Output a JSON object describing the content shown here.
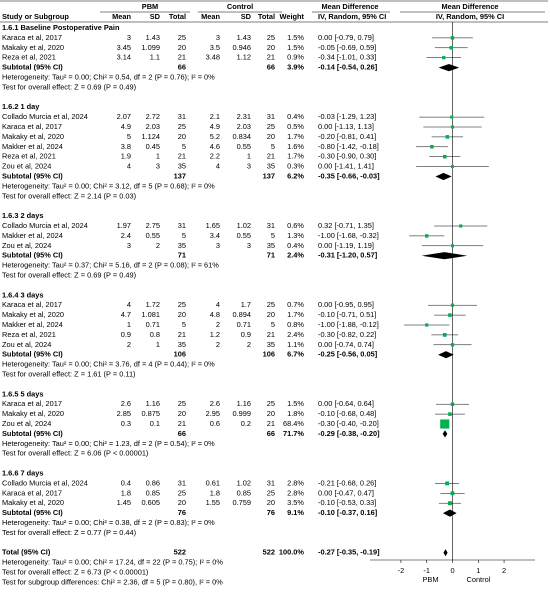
{
  "header": {
    "group_pbm": "PBM",
    "group_control": "Control",
    "group_md_text": "Mean Difference",
    "group_md_plot": "Mean Difference",
    "columns": [
      "Study or Subgroup",
      "Mean",
      "SD",
      "Total",
      "Mean",
      "SD",
      "Total",
      "Weight",
      "IV, Random, 95% CI",
      "IV, Random, 95% CI"
    ]
  },
  "chart_data": {
    "type": "forest",
    "xlim": [
      -3.2,
      3.2
    ],
    "xticks": [
      -2,
      -1,
      0,
      1,
      2
    ],
    "x_label_left": "PBM",
    "x_label_right": "Control",
    "square_color": "#00b050",
    "diamond_color": "#000000",
    "subgroups": [
      {
        "title": "1.6.1 Baseline Postoperative Pain",
        "studies": [
          {
            "study": "Karaca et al, 2017",
            "pbm": [
              "3",
              "1.43",
              "25"
            ],
            "control": [
              "3",
              "1.43",
              "25"
            ],
            "weight": 1.5,
            "weight_label": "1.5%",
            "md": 0.0,
            "lo": -0.79,
            "hi": 0.79,
            "md_label": "0.00 [-0.79, 0.79]"
          },
          {
            "study": "Makaky et al, 2020",
            "pbm": [
              "3.45",
              "1.099",
              "20"
            ],
            "control": [
              "3.5",
              "0.946",
              "20"
            ],
            "weight": 1.5,
            "weight_label": "1.5%",
            "md": -0.05,
            "lo": -0.69,
            "hi": 0.59,
            "md_label": "-0.05 [-0.69, 0.59]"
          },
          {
            "study": "Reza et al, 2021",
            "pbm": [
              "3.14",
              "1.1",
              "21"
            ],
            "control": [
              "3.48",
              "1.12",
              "21"
            ],
            "weight": 0.9,
            "weight_label": "0.9%",
            "md": -0.34,
            "lo": -1.01,
            "hi": 0.33,
            "md_label": "-0.34 [-1.01, 0.33]"
          }
        ],
        "subtotal": {
          "label": "Subtotal (95% CI)",
          "pbm_total": "66",
          "control_total": "66",
          "weight_label": "3.9%",
          "md": -0.14,
          "lo": -0.54,
          "hi": 0.26,
          "md_label": "-0.14 [-0.54, 0.26]"
        },
        "heterogeneity": "Heterogeneity: Tau² = 0.00; Chi² = 0.54, df = 2 (P = 0.76); I² = 0%",
        "overall": "Test for overall effect: Z = 0.69 (P = 0.49)"
      },
      {
        "title": "1.6.2 1 day",
        "studies": [
          {
            "study": "Collado Murcia et al, 2024",
            "pbm": [
              "2.07",
              "2.72",
              "31"
            ],
            "control": [
              "2.1",
              "2.31",
              "31"
            ],
            "weight": 0.4,
            "weight_label": "0.4%",
            "md": -0.03,
            "lo": -1.29,
            "hi": 1.23,
            "md_label": "-0.03 [-1.29, 1.23]"
          },
          {
            "study": "Karaca et al, 2017",
            "pbm": [
              "4.9",
              "2.03",
              "25"
            ],
            "control": [
              "4.9",
              "2.03",
              "25"
            ],
            "weight": 0.5,
            "weight_label": "0.5%",
            "md": 0.0,
            "lo": -1.13,
            "hi": 1.13,
            "md_label": "0.00 [-1.13, 1.13]"
          },
          {
            "study": "Makaky et al, 2020",
            "pbm": [
              "5",
              "1.124",
              "20"
            ],
            "control": [
              "5.2",
              "0.834",
              "20"
            ],
            "weight": 1.7,
            "weight_label": "1.7%",
            "md": -0.2,
            "lo": -0.81,
            "hi": 0.41,
            "md_label": "-0.20 [-0.81, 0.41]"
          },
          {
            "study": "Makker et al, 2024",
            "pbm": [
              "3.8",
              "0.45",
              "5"
            ],
            "control": [
              "4.6",
              "0.55",
              "5"
            ],
            "weight": 1.6,
            "weight_label": "1.6%",
            "md": -0.8,
            "lo": -1.42,
            "hi": -0.18,
            "md_label": "-0.80 [-1.42, -0.18]"
          },
          {
            "study": "Reza et al, 2021",
            "pbm": [
              "1.9",
              "1",
              "21"
            ],
            "control": [
              "2.2",
              "1",
              "21"
            ],
            "weight": 1.7,
            "weight_label": "1.7%",
            "md": -0.3,
            "lo": -0.9,
            "hi": 0.3,
            "md_label": "-0.30 [-0.90, 0.30]"
          },
          {
            "study": "Zou et al, 2024",
            "pbm": [
              "4",
              "3",
              "35"
            ],
            "control": [
              "4",
              "3",
              "35"
            ],
            "weight": 0.3,
            "weight_label": "0.3%",
            "md": 0.0,
            "lo": -1.41,
            "hi": 1.41,
            "md_label": "0.00 [-1.41, 1.41]"
          }
        ],
        "subtotal": {
          "label": "Subtotal (95% CI)",
          "pbm_total": "137",
          "control_total": "137",
          "weight_label": "6.2%",
          "md": -0.35,
          "lo": -0.66,
          "hi": -0.03,
          "md_label": "-0.35 [-0.66, -0.03]"
        },
        "heterogeneity": "Heterogeneity: Tau² = 0.00; Chi² = 3.12, df = 5 (P = 0.68); I² = 0%",
        "overall": "Test for overall effect: Z = 2.14 (P = 0.03)"
      },
      {
        "title": "1.6.3 2 days",
        "studies": [
          {
            "study": "Collado Murcia et al, 2024",
            "pbm": [
              "1.97",
              "2.75",
              "31"
            ],
            "control": [
              "1.65",
              "1.02",
              "31"
            ],
            "weight": 0.6,
            "weight_label": "0.6%",
            "md": 0.32,
            "lo": -0.71,
            "hi": 1.35,
            "md_label": "0.32 [-0.71, 1.35]"
          },
          {
            "study": "Makker et al, 2024",
            "pbm": [
              "2.4",
              "0.55",
              "5"
            ],
            "control": [
              "3.4",
              "0.55",
              "5"
            ],
            "weight": 1.3,
            "weight_label": "1.3%",
            "md": -1.0,
            "lo": -1.68,
            "hi": -0.32,
            "md_label": "-1.00 [-1.68, -0.32]"
          },
          {
            "study": "Zou et al, 2024",
            "pbm": [
              "3",
              "2",
              "35"
            ],
            "control": [
              "3",
              "3",
              "35"
            ],
            "weight": 0.4,
            "weight_label": "0.4%",
            "md": 0.0,
            "lo": -1.19,
            "hi": 1.19,
            "md_label": "0.00 [-1.19, 1.19]"
          }
        ],
        "subtotal": {
          "label": "Subtotal (95% CI)",
          "pbm_total": "71",
          "control_total": "71",
          "weight_label": "2.4%",
          "md": -0.31,
          "lo": -1.2,
          "hi": 0.57,
          "md_label": "-0.31 [-1.20, 0.57]"
        },
        "heterogeneity": "Heterogeneity: Tau² = 0.37; Chi² = 5.16, df = 2 (P = 0.08); I² = 61%",
        "overall": "Test for overall effect: Z = 0.69 (P = 0.49)"
      },
      {
        "title": "1.6.4 3 days",
        "studies": [
          {
            "study": "Karaca et al, 2017",
            "pbm": [
              "4",
              "1.72",
              "25"
            ],
            "control": [
              "4",
              "1.7",
              "25"
            ],
            "weight": 0.7,
            "weight_label": "0.7%",
            "md": 0.0,
            "lo": -0.95,
            "hi": 0.95,
            "md_label": "0.00 [-0.95, 0.95]"
          },
          {
            "study": "Makaky et al, 2020",
            "pbm": [
              "4.7",
              "1.081",
              "20"
            ],
            "control": [
              "4.8",
              "0.894",
              "20"
            ],
            "weight": 1.7,
            "weight_label": "1.7%",
            "md": -0.1,
            "lo": -0.71,
            "hi": 0.51,
            "md_label": "-0.10 [-0.71, 0.51]"
          },
          {
            "study": "Makker et al, 2024",
            "pbm": [
              "1",
              "0.71",
              "5"
            ],
            "control": [
              "2",
              "0.71",
              "5"
            ],
            "weight": 0.8,
            "weight_label": "0.8%",
            "md": -1.0,
            "lo": -1.88,
            "hi": -0.12,
            "md_label": "-1.00 [-1.88, -0.12]"
          },
          {
            "study": "Reza et al, 2021",
            "pbm": [
              "0.9",
              "0.8",
              "21"
            ],
            "control": [
              "1.2",
              "0.9",
              "21"
            ],
            "weight": 2.4,
            "weight_label": "2.4%",
            "md": -0.3,
            "lo": -0.82,
            "hi": 0.22,
            "md_label": "-0.30 [-0.82, 0.22]"
          },
          {
            "study": "Zou et al, 2024",
            "pbm": [
              "2",
              "1",
              "35"
            ],
            "control": [
              "2",
              "2",
              "35"
            ],
            "weight": 1.1,
            "weight_label": "1.1%",
            "md": 0.0,
            "lo": -0.74,
            "hi": 0.74,
            "md_label": "0.00 [-0.74, 0.74]"
          }
        ],
        "subtotal": {
          "label": "Subtotal (95% CI)",
          "pbm_total": "106",
          "control_total": "106",
          "weight_label": "6.7%",
          "md": -0.25,
          "lo": -0.56,
          "hi": 0.05,
          "md_label": "-0.25 [-0.56, 0.05]"
        },
        "heterogeneity": "Heterogeneity: Tau² = 0.00; Chi² = 3.76, df = 4 (P = 0.44); I² = 0%",
        "overall": "Test for overall effect: Z = 1.61 (P = 0.11)"
      },
      {
        "title": "1.6.5 5 days",
        "studies": [
          {
            "study": "Karaca et al, 2017",
            "pbm": [
              "2.6",
              "1.16",
              "25"
            ],
            "control": [
              "2.6",
              "1.16",
              "25"
            ],
            "weight": 1.5,
            "weight_label": "1.5%",
            "md": 0.0,
            "lo": -0.64,
            "hi": 0.64,
            "md_label": "0.00 [-0.64, 0.64]"
          },
          {
            "study": "Makaky et al, 2020",
            "pbm": [
              "2.85",
              "0.875",
              "20"
            ],
            "control": [
              "2.95",
              "0.999",
              "20"
            ],
            "weight": 1.8,
            "weight_label": "1.8%",
            "md": -0.1,
            "lo": -0.68,
            "hi": 0.48,
            "md_label": "-0.10 [-0.68, 0.48]"
          },
          {
            "study": "Zou et al, 2024",
            "pbm": [
              "0.3",
              "0.1",
              "21"
            ],
            "control": [
              "0.6",
              "0.2",
              "21"
            ],
            "weight": 68.4,
            "weight_label": "68.4%",
            "md": -0.3,
            "lo": -0.4,
            "hi": -0.2,
            "md_label": "-0.30 [-0.40, -0.20]"
          }
        ],
        "subtotal": {
          "label": "Subtotal (95% CI)",
          "pbm_total": "66",
          "control_total": "66",
          "weight_label": "71.7%",
          "md": -0.29,
          "lo": -0.38,
          "hi": -0.2,
          "md_label": "-0.29 [-0.38, -0.20]"
        },
        "heterogeneity": "Heterogeneity: Tau² = 0.00; Chi² = 1.23, df = 2 (P = 0.54); I² = 0%",
        "overall": "Test for overall effect: Z = 6.06 (P < 0.00001)"
      },
      {
        "title": "1.6.6 7 days",
        "studies": [
          {
            "study": "Collado Murcia et al, 2024",
            "pbm": [
              "0.4",
              "0.86",
              "31"
            ],
            "control": [
              "0.61",
              "1.02",
              "31"
            ],
            "weight": 2.8,
            "weight_label": "2.8%",
            "md": -0.21,
            "lo": -0.68,
            "hi": 0.26,
            "md_label": "-0.21 [-0.68, 0.26]"
          },
          {
            "study": "Karaca et al, 2017",
            "pbm": [
              "1.8",
              "0.85",
              "25"
            ],
            "control": [
              "1.8",
              "0.85",
              "25"
            ],
            "weight": 2.8,
            "weight_label": "2.8%",
            "md": 0.0,
            "lo": -0.47,
            "hi": 0.47,
            "md_label": "0.00 [-0.47, 0.47]"
          },
          {
            "study": "Makaky et al, 2020",
            "pbm": [
              "1.45",
              "0.605",
              "20"
            ],
            "control": [
              "1.55",
              "0.759",
              "20"
            ],
            "weight": 3.5,
            "weight_label": "3.5%",
            "md": -0.1,
            "lo": -0.53,
            "hi": 0.33,
            "md_label": "-0.10 [-0.53, 0.33]"
          }
        ],
        "subtotal": {
          "label": "Subtotal (95% CI)",
          "pbm_total": "76",
          "control_total": "76",
          "weight_label": "9.1%",
          "md": -0.1,
          "lo": -0.37,
          "hi": 0.16,
          "md_label": "-0.10 [-0.37, 0.16]"
        },
        "heterogeneity": "Heterogeneity: Tau² = 0.00; Chi² = 0.38, df = 2 (P = 0.83); I² = 0%",
        "overall": "Test for overall effect: Z = 0.77 (P = 0.44)"
      }
    ],
    "total": {
      "label": "Total (95% CI)",
      "pbm_total": "522",
      "control_total": "522",
      "weight_label": "100.0%",
      "md": -0.27,
      "lo": -0.35,
      "hi": -0.19,
      "md_label": "-0.27 [-0.35, -0.19]",
      "heterogeneity": "Heterogeneity: Tau² = 0.00; Chi² = 17.24, df = 22 (P = 0.75); I² = 0%",
      "overall": "Test for overall effect: Z = 6.73 (P < 0.00001)",
      "subgroup_differences": "Test for subgroup differences: Chi² = 2.36, df = 5 (P = 0.80), I² = 0%"
    }
  }
}
